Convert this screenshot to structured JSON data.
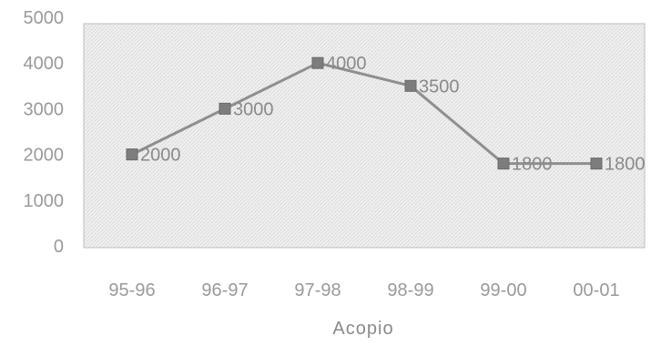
{
  "chart_data": {
    "type": "line",
    "title": "",
    "xlabel": "Acopio",
    "ylabel": "",
    "categories": [
      "95-96",
      "96-97",
      "97-98",
      "98-99",
      "99-00",
      "00-01"
    ],
    "series": [
      {
        "values": [
          2000,
          3000,
          4000,
          3500,
          1800,
          1800
        ]
      }
    ],
    "data_labels": [
      "2000",
      "3000",
      "4000",
      "3500",
      "1800",
      "1800"
    ],
    "y_ticks": [
      "0",
      "1000",
      "2000",
      "3000",
      "4000",
      "5000"
    ],
    "ylim": [
      0,
      5000
    ],
    "grid": false,
    "legend": "none",
    "colors": {
      "line": "#8f8f8f",
      "marker": "#7d7d7d",
      "plot_background": "#ececec",
      "plot_border": "#bdbdbd",
      "text": "#9a9a9a"
    }
  }
}
